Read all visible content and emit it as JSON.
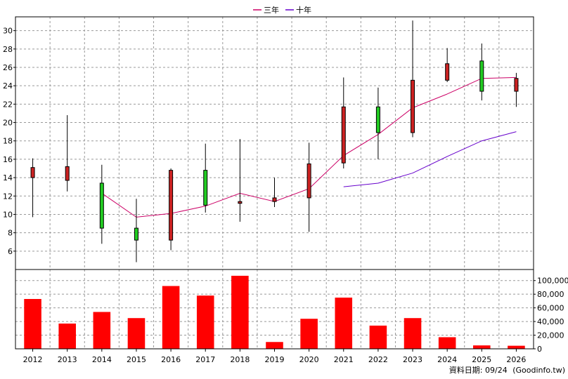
{
  "legend": {
    "items": [
      {
        "label": "三年",
        "color": "#cc0066"
      },
      {
        "label": "十年",
        "color": "#6600cc"
      }
    ],
    "position": "top-center"
  },
  "footer": {
    "date_label": "資料日期: 09/24",
    "source": "(Goodinfo.tw)"
  },
  "chart_data": [
    {
      "type": "candlestick",
      "categories": [
        "2012",
        "2013",
        "2014",
        "2015",
        "2016",
        "2017",
        "2018",
        "2019",
        "2020",
        "2021",
        "2022",
        "2023",
        "2024",
        "2025",
        "2026"
      ],
      "ohlc": [
        {
          "open": 14.0,
          "high": 16.1,
          "low": 9.7,
          "close": 15.1
        },
        {
          "open": 13.7,
          "high": 20.8,
          "low": 12.5,
          "close": 15.2
        },
        {
          "open": 13.4,
          "high": 15.4,
          "low": 6.8,
          "close": 8.5
        },
        {
          "open": 8.5,
          "high": 11.7,
          "low": 4.8,
          "close": 7.2
        },
        {
          "open": 7.2,
          "high": 15.0,
          "low": 6.1,
          "close": 14.8
        },
        {
          "open": 14.8,
          "high": 17.7,
          "low": 10.2,
          "close": 11.0
        },
        {
          "open": 11.2,
          "high": 18.2,
          "low": 9.2,
          "close": 11.4
        },
        {
          "open": 11.4,
          "high": 14.0,
          "low": 10.8,
          "close": 11.8
        },
        {
          "open": 11.8,
          "high": 17.8,
          "low": 8.1,
          "close": 15.5
        },
        {
          "open": 15.6,
          "high": 24.9,
          "low": 15.0,
          "close": 21.7
        },
        {
          "open": 21.7,
          "high": 23.8,
          "low": 16.0,
          "close": 18.9
        },
        {
          "open": 18.9,
          "high": 31.1,
          "low": 18.4,
          "close": 24.6
        },
        {
          "open": 24.6,
          "high": 28.1,
          "low": 24.4,
          "close": 26.4
        },
        {
          "open": 26.7,
          "high": 28.6,
          "low": 22.4,
          "close": 23.4
        },
        {
          "open": 23.4,
          "high": 25.4,
          "low": 21.7,
          "close": 24.8
        }
      ],
      "up_color": "#cc2222",
      "down_color": "#22cc22",
      "series": [
        {
          "name": "三年",
          "color": "#cc0066",
          "values": [
            null,
            null,
            12.3,
            9.7,
            10.1,
            10.9,
            12.3,
            11.4,
            12.8,
            16.4,
            18.7,
            21.6,
            23.1,
            24.8,
            24.9
          ]
        },
        {
          "name": "十年",
          "color": "#6600cc",
          "values": [
            null,
            null,
            null,
            null,
            null,
            null,
            null,
            null,
            null,
            13.0,
            13.4,
            14.5,
            16.3,
            18.0,
            19.0
          ]
        }
      ],
      "ylim": [
        4,
        31.5
      ],
      "yticks": [
        6,
        8,
        10,
        12,
        14,
        16,
        18,
        20,
        22,
        24,
        26,
        28,
        30
      ],
      "ytick_labels": [
        "6",
        "8",
        "10",
        "12",
        "14",
        "16",
        "18",
        "20",
        "22",
        "24",
        "26",
        "28",
        "30"
      ],
      "grid": true
    },
    {
      "type": "bar",
      "categories": [
        "2012",
        "2013",
        "2014",
        "2015",
        "2016",
        "2017",
        "2018",
        "2019",
        "2020",
        "2021",
        "2022",
        "2023",
        "2024",
        "2025",
        "2026"
      ],
      "values": [
        73000,
        37000,
        54000,
        45000,
        92000,
        78000,
        107000,
        10000,
        44000,
        75000,
        34000,
        45000,
        17000,
        5000,
        4500
      ],
      "color": "#ff0000",
      "ylim": [
        0,
        110000
      ],
      "yticks": [
        0,
        20000,
        40000,
        60000,
        80000,
        100000
      ],
      "ytick_labels": [
        "0",
        "20,000",
        "40,000",
        "60,000",
        "80,000",
        "100,000"
      ],
      "grid": true
    }
  ]
}
